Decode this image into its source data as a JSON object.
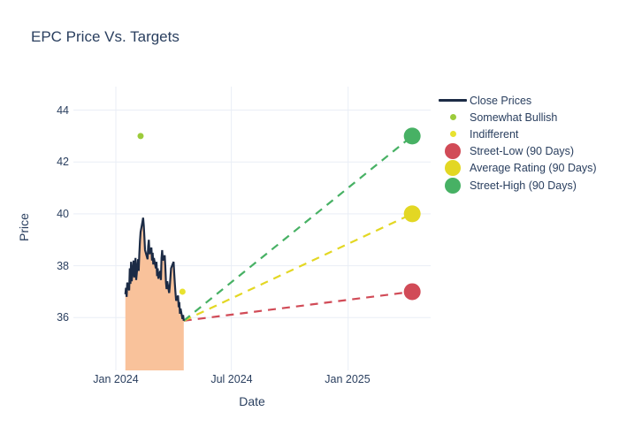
{
  "title": "EPC Price Vs. Targets",
  "axes": {
    "x_label": "Date",
    "y_label": "Price",
    "x_ticks": [
      "Jan 2024",
      "Jul 2024",
      "Jan 2025"
    ],
    "y_ticks": [
      "44",
      "42",
      "40",
      "38",
      "36"
    ]
  },
  "legend": {
    "position": "right",
    "items": [
      {
        "label": "Close Prices",
        "marker": "line",
        "color": "#1c2b45"
      },
      {
        "label": "Somewhat Bullish",
        "marker": "dot-s",
        "color": "#9ccb3b"
      },
      {
        "label": "Indifferent",
        "marker": "dot-s",
        "color": "#e8e22f"
      },
      {
        "label": "Street-Low (90 Days)",
        "marker": "dot-l",
        "color": "#d14b57"
      },
      {
        "label": "Average Rating (90 Days)",
        "marker": "dot-l",
        "color": "#e3d723"
      },
      {
        "label": "Street-High (90 Days)",
        "marker": "dot-l",
        "color": "#47b164"
      }
    ]
  },
  "colors": {
    "text": "#2a3f5f",
    "gridline": "#e9eef6",
    "background": "#ffffff",
    "close_line": "#1c2b45",
    "close_fill": "#f9c29b"
  },
  "chart_data": {
    "type": "line",
    "title": "EPC Price Vs. Targets",
    "xlabel": "Date",
    "ylabel": "Price",
    "x_tick_labels": [
      "Jan 2024",
      "Jul 2024",
      "Jan 2025"
    ],
    "x_grid_dates": [
      "2024-01-01",
      "2024-07-01",
      "2025-01-01"
    ],
    "y_grid_values": [
      36,
      38,
      40,
      42,
      44
    ],
    "ylim": [
      34,
      44.9
    ],
    "grid": true,
    "legend_position": "right",
    "series": [
      {
        "name": "Close Prices",
        "type": "line",
        "color": "#1c2b45",
        "fill_color": "#f9c29b",
        "fill": "tozeroy",
        "dates": [
          "2024-01-16",
          "2024-01-17",
          "2024-01-18",
          "2024-01-19",
          "2024-01-22",
          "2024-01-23",
          "2024-01-24",
          "2024-01-25",
          "2024-01-26",
          "2024-01-29",
          "2024-01-30",
          "2024-01-31",
          "2024-02-01",
          "2024-02-02",
          "2024-02-05",
          "2024-02-06",
          "2024-02-07",
          "2024-02-08",
          "2024-02-09",
          "2024-02-12",
          "2024-02-13",
          "2024-02-14",
          "2024-02-15",
          "2024-02-16",
          "2024-02-20",
          "2024-02-21",
          "2024-02-22",
          "2024-02-23",
          "2024-02-26",
          "2024-02-27",
          "2024-02-28",
          "2024-02-29",
          "2024-03-01",
          "2024-03-04",
          "2024-03-05",
          "2024-03-06",
          "2024-03-07",
          "2024-03-08",
          "2024-03-11",
          "2024-03-12",
          "2024-03-13",
          "2024-03-14",
          "2024-03-15",
          "2024-03-18",
          "2024-03-19",
          "2024-03-20",
          "2024-03-21",
          "2024-03-22",
          "2024-03-25",
          "2024-03-26",
          "2024-03-27",
          "2024-03-28",
          "2024-04-01",
          "2024-04-02",
          "2024-04-03",
          "2024-04-04",
          "2024-04-05",
          "2024-04-08",
          "2024-04-09",
          "2024-04-10",
          "2024-04-11",
          "2024-04-12",
          "2024-04-15",
          "2024-04-16",
          "2024-04-17"
        ],
        "values": [
          36.9,
          37.15,
          36.8,
          37.35,
          37.05,
          37.9,
          37.3,
          38.15,
          37.4,
          38.2,
          37.55,
          37.95,
          38.3,
          37.45,
          38.25,
          37.8,
          38.45,
          38.95,
          39.3,
          39.7,
          39.85,
          39.55,
          39.1,
          38.6,
          38.25,
          38.75,
          39.0,
          38.45,
          38.7,
          38.2,
          38.5,
          38.05,
          38.3,
          37.9,
          38.15,
          37.6,
          37.9,
          37.5,
          37.8,
          37.45,
          38.3,
          38.6,
          38.2,
          38.4,
          37.95,
          37.35,
          37.1,
          37.4,
          36.95,
          37.2,
          37.55,
          37.9,
          38.15,
          37.7,
          37.3,
          36.95,
          36.65,
          36.85,
          36.4,
          36.6,
          36.15,
          36.35,
          35.95,
          36.1,
          35.88
        ]
      },
      {
        "name": "Somewhat Bullish",
        "type": "scatter",
        "color": "#9ccb3b",
        "points": [
          {
            "date": "2024-02-09",
            "value": 43.0
          }
        ]
      },
      {
        "name": "Indifferent",
        "type": "scatter",
        "color": "#e8e22f",
        "points": [
          {
            "date": "2024-04-15",
            "value": 37.0
          }
        ]
      },
      {
        "name": "Street-Low (90 Days)",
        "type": "target",
        "color": "#d14b57",
        "date": "2025-04-12",
        "value": 37.0
      },
      {
        "name": "Average Rating (90 Days)",
        "type": "target",
        "color": "#e3d723",
        "date": "2025-04-12",
        "value": 40.0
      },
      {
        "name": "Street-High (90 Days)",
        "type": "target",
        "color": "#47b164",
        "date": "2025-04-12",
        "value": 43.0
      }
    ]
  }
}
